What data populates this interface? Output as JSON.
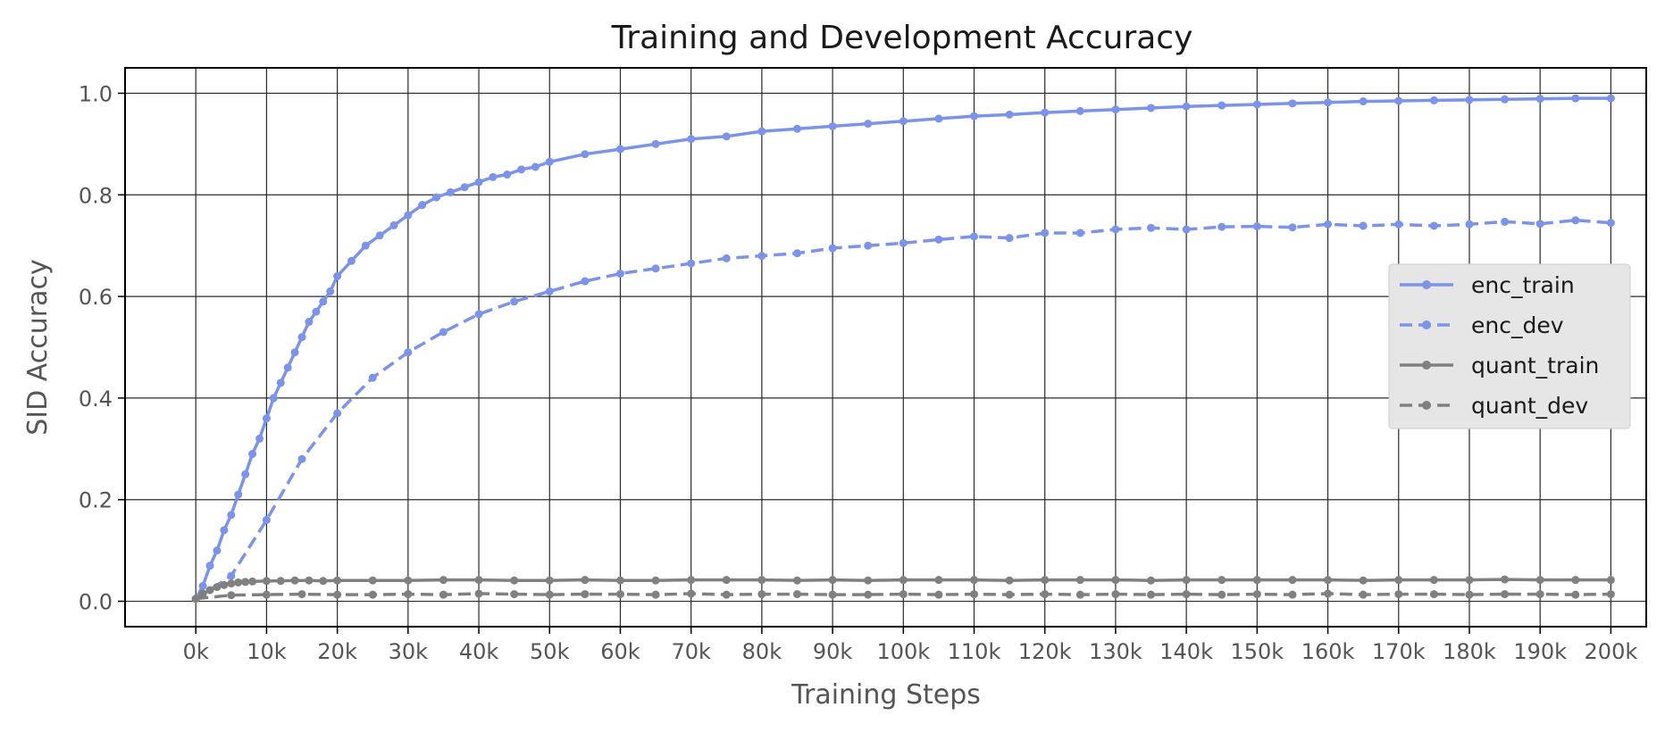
{
  "chart_data": {
    "type": "line",
    "title": "Training and Development Accuracy",
    "xlabel": "Training Steps",
    "ylabel": "SID Accuracy",
    "xlim": [
      -10000,
      205000
    ],
    "ylim": [
      -0.05,
      1.05
    ],
    "x_ticks": [
      0,
      10000,
      20000,
      30000,
      40000,
      50000,
      60000,
      70000,
      80000,
      90000,
      100000,
      110000,
      120000,
      130000,
      140000,
      150000,
      160000,
      170000,
      180000,
      190000,
      200000
    ],
    "x_tick_labels": [
      "0k",
      "10k",
      "20k",
      "30k",
      "40k",
      "50k",
      "60k",
      "70k",
      "80k",
      "90k",
      "100k",
      "110k",
      "120k",
      "130k",
      "140k",
      "150k",
      "160k",
      "170k",
      "180k",
      "190k",
      "200k"
    ],
    "y_ticks": [
      0.0,
      0.2,
      0.4,
      0.6,
      0.8,
      1.0
    ],
    "y_tick_labels": [
      "0.0",
      "0.2",
      "0.4",
      "0.6",
      "0.8",
      "1.0"
    ],
    "grid": true,
    "legend_position": "center-right",
    "series": [
      {
        "name": "enc_train",
        "color": "#7b93e8",
        "linestyle": "solid",
        "x": [
          0,
          1000,
          2000,
          3000,
          4000,
          5000,
          6000,
          7000,
          8000,
          9000,
          10000,
          11000,
          12000,
          13000,
          14000,
          15000,
          16000,
          17000,
          18000,
          19000,
          20000,
          22000,
          24000,
          26000,
          28000,
          30000,
          32000,
          34000,
          36000,
          38000,
          40000,
          42000,
          44000,
          46000,
          48000,
          50000,
          55000,
          60000,
          65000,
          70000,
          75000,
          80000,
          85000,
          90000,
          95000,
          100000,
          105000,
          110000,
          115000,
          120000,
          125000,
          130000,
          135000,
          140000,
          145000,
          150000,
          155000,
          160000,
          165000,
          170000,
          175000,
          180000,
          185000,
          190000,
          195000,
          200000
        ],
        "y": [
          0.005,
          0.03,
          0.07,
          0.1,
          0.14,
          0.17,
          0.21,
          0.25,
          0.29,
          0.32,
          0.36,
          0.4,
          0.43,
          0.46,
          0.49,
          0.52,
          0.55,
          0.57,
          0.59,
          0.61,
          0.64,
          0.67,
          0.7,
          0.72,
          0.74,
          0.76,
          0.78,
          0.795,
          0.805,
          0.815,
          0.825,
          0.835,
          0.84,
          0.85,
          0.855,
          0.865,
          0.88,
          0.89,
          0.9,
          0.91,
          0.915,
          0.925,
          0.93,
          0.935,
          0.94,
          0.945,
          0.95,
          0.955,
          0.958,
          0.962,
          0.965,
          0.968,
          0.971,
          0.974,
          0.976,
          0.978,
          0.98,
          0.982,
          0.984,
          0.985,
          0.986,
          0.987,
          0.988,
          0.989,
          0.99,
          0.99
        ]
      },
      {
        "name": "enc_dev",
        "color": "#7b93e8",
        "linestyle": "dashed",
        "x": [
          0,
          5000,
          10000,
          15000,
          20000,
          25000,
          30000,
          35000,
          40000,
          45000,
          50000,
          55000,
          60000,
          65000,
          70000,
          75000,
          80000,
          85000,
          90000,
          95000,
          100000,
          105000,
          110000,
          115000,
          120000,
          125000,
          130000,
          135000,
          140000,
          145000,
          150000,
          155000,
          160000,
          165000,
          170000,
          175000,
          180000,
          185000,
          190000,
          195000,
          200000
        ],
        "y": [
          0.005,
          0.05,
          0.16,
          0.28,
          0.37,
          0.44,
          0.49,
          0.53,
          0.565,
          0.59,
          0.61,
          0.63,
          0.645,
          0.655,
          0.665,
          0.675,
          0.68,
          0.685,
          0.695,
          0.7,
          0.705,
          0.712,
          0.718,
          0.715,
          0.725,
          0.725,
          0.732,
          0.735,
          0.732,
          0.737,
          0.738,
          0.736,
          0.742,
          0.739,
          0.742,
          0.739,
          0.742,
          0.747,
          0.743,
          0.75,
          0.745
        ]
      },
      {
        "name": "quant_train",
        "color": "#808080",
        "linestyle": "solid",
        "x": [
          0,
          1000,
          2000,
          3000,
          4000,
          5000,
          6000,
          7000,
          8000,
          10000,
          12000,
          14000,
          16000,
          18000,
          20000,
          25000,
          30000,
          35000,
          40000,
          45000,
          50000,
          55000,
          60000,
          65000,
          70000,
          75000,
          80000,
          85000,
          90000,
          95000,
          100000,
          105000,
          110000,
          115000,
          120000,
          125000,
          130000,
          135000,
          140000,
          145000,
          150000,
          155000,
          160000,
          165000,
          170000,
          175000,
          180000,
          185000,
          190000,
          195000,
          200000
        ],
        "y": [
          0.005,
          0.015,
          0.022,
          0.028,
          0.032,
          0.035,
          0.037,
          0.038,
          0.039,
          0.04,
          0.04,
          0.041,
          0.041,
          0.04,
          0.041,
          0.041,
          0.041,
          0.042,
          0.042,
          0.041,
          0.041,
          0.042,
          0.041,
          0.041,
          0.042,
          0.042,
          0.042,
          0.041,
          0.042,
          0.041,
          0.042,
          0.042,
          0.042,
          0.041,
          0.042,
          0.042,
          0.042,
          0.041,
          0.042,
          0.042,
          0.042,
          0.042,
          0.042,
          0.041,
          0.042,
          0.042,
          0.042,
          0.043,
          0.042,
          0.042,
          0.042
        ]
      },
      {
        "name": "quant_dev",
        "color": "#808080",
        "linestyle": "dashed",
        "x": [
          0,
          5000,
          10000,
          15000,
          20000,
          25000,
          30000,
          35000,
          40000,
          45000,
          50000,
          55000,
          60000,
          65000,
          70000,
          75000,
          80000,
          85000,
          90000,
          95000,
          100000,
          105000,
          110000,
          115000,
          120000,
          125000,
          130000,
          135000,
          140000,
          145000,
          150000,
          155000,
          160000,
          165000,
          170000,
          175000,
          180000,
          185000,
          190000,
          195000,
          200000
        ],
        "y": [
          0.005,
          0.012,
          0.013,
          0.014,
          0.013,
          0.013,
          0.014,
          0.013,
          0.015,
          0.014,
          0.013,
          0.014,
          0.014,
          0.013,
          0.015,
          0.013,
          0.014,
          0.014,
          0.013,
          0.013,
          0.014,
          0.013,
          0.014,
          0.013,
          0.014,
          0.013,
          0.014,
          0.013,
          0.014,
          0.013,
          0.014,
          0.013,
          0.015,
          0.013,
          0.014,
          0.014,
          0.013,
          0.014,
          0.014,
          0.013,
          0.014
        ]
      }
    ]
  }
}
